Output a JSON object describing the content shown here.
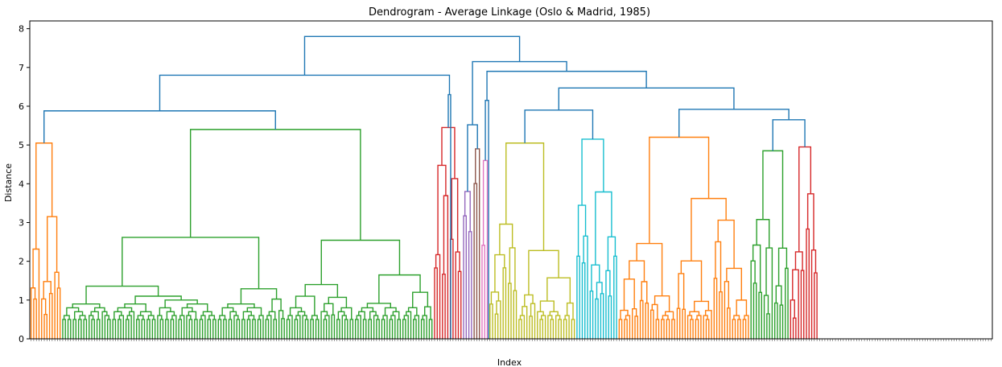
{
  "chart_data": {
    "type": "dendrogram",
    "title": "Dendrogram - Average Linkage (Oslo & Madrid, 1985)",
    "xlabel": "Index",
    "ylabel": "Distance",
    "ylim": [
      0,
      8.2
    ],
    "yticks": [
      "0",
      "1",
      "2",
      "3",
      "4",
      "5",
      "6",
      "7",
      "8"
    ],
    "n_leaves": 365,
    "grid": false,
    "colors": {
      "above_threshold": "#1f77b4",
      "orange": "#ff7f0e",
      "green": "#2ca02c",
      "red": "#d62728",
      "purple": "#9467bd",
      "brown": "#8c564b",
      "pink": "#e377c2",
      "olive": "#bcbd22",
      "cyan": "#17becf"
    },
    "clusters": [
      {
        "color": "orange",
        "size": 12,
        "height": 5.05
      },
      {
        "color": "green",
        "size": 141,
        "height": 5.4
      },
      {
        "color": "red",
        "size": 11,
        "height": 5.45
      },
      {
        "color": "purple",
        "size": 4,
        "height": 3.8
      },
      {
        "color": "brown",
        "size": 3,
        "height": 4.9
      },
      {
        "color": "pink",
        "size": 3,
        "height": 4.6
      },
      {
        "color": "olive",
        "size": 33,
        "height": 5.05
      },
      {
        "color": "cyan",
        "size": 16,
        "height": 5.15
      },
      {
        "color": "orange",
        "size": 50,
        "height": 5.2
      },
      {
        "color": "green",
        "size": 15,
        "height": 4.85
      },
      {
        "color": "red",
        "size": 11,
        "height": 4.95
      }
    ],
    "merges": [
      {
        "name": "main-left",
        "height": 5.88
      },
      {
        "name": "left-with-red",
        "height": 6.8
      },
      {
        "name": "red-wrap",
        "height": 6.3
      },
      {
        "name": "purple-brown",
        "height": 5.52
      },
      {
        "name": "pink-rest",
        "height": 6.15
      },
      {
        "name": "olive-cyan",
        "height": 5.9
      },
      {
        "name": "orange-greenred",
        "height": 5.92
      },
      {
        "name": "green-red-right",
        "height": 5.65
      },
      {
        "name": "right-big",
        "height": 6.47
      },
      {
        "name": "right-top",
        "height": 6.9
      },
      {
        "name": "right-all",
        "height": 7.15
      },
      {
        "name": "root",
        "height": 7.8
      }
    ]
  }
}
